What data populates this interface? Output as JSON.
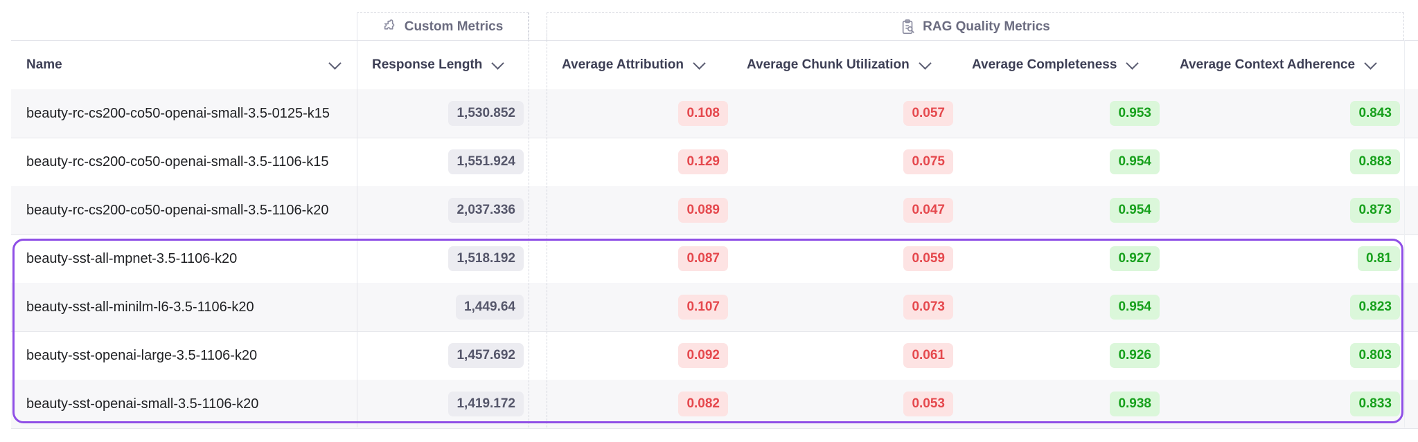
{
  "groups": {
    "custom": "Custom Metrics",
    "rag": "RAG Quality Metrics"
  },
  "icons": {
    "custom": "puzzle-icon",
    "rag": "clipboard-search-icon",
    "sort": "chevron-down-icon"
  },
  "columns": {
    "name": "Name",
    "response_length": "Response Length",
    "attribution": "Average Attribution",
    "chunk_utilization": "Average Chunk Utilization",
    "completeness": "Average Completeness",
    "context_adherence": "Average Context Adherence"
  },
  "colors": {
    "bad_text": "#e5484d",
    "bad_bg": "#fde3e3",
    "good_text": "#17a01c",
    "good_bg": "#dbf7da",
    "highlight": "#8f4fe6"
  },
  "rows": [
    {
      "name": "beauty-rc-cs200-co50-openai-small-3.5-0125-k15",
      "response_length": "1,530.852",
      "attribution": "0.108",
      "chunk_utilization": "0.057",
      "completeness": "0.953",
      "context_adherence": "0.843"
    },
    {
      "name": "beauty-rc-cs200-co50-openai-small-3.5-1106-k15",
      "response_length": "1,551.924",
      "attribution": "0.129",
      "chunk_utilization": "0.075",
      "completeness": "0.954",
      "context_adherence": "0.883"
    },
    {
      "name": "beauty-rc-cs200-co50-openai-small-3.5-1106-k20",
      "response_length": "2,037.336",
      "attribution": "0.089",
      "chunk_utilization": "0.047",
      "completeness": "0.954",
      "context_adherence": "0.873"
    },
    {
      "name": "beauty-sst-all-mpnet-3.5-1106-k20",
      "response_length": "1,518.192",
      "attribution": "0.087",
      "chunk_utilization": "0.059",
      "completeness": "0.927",
      "context_adherence": "0.81"
    },
    {
      "name": "beauty-sst-all-minilm-l6-3.5-1106-k20",
      "response_length": "1,449.64",
      "attribution": "0.107",
      "chunk_utilization": "0.073",
      "completeness": "0.954",
      "context_adherence": "0.823"
    },
    {
      "name": "beauty-sst-openai-large-3.5-1106-k20",
      "response_length": "1,457.692",
      "attribution": "0.092",
      "chunk_utilization": "0.061",
      "completeness": "0.926",
      "context_adherence": "0.803"
    },
    {
      "name": "beauty-sst-openai-small-3.5-1106-k20",
      "response_length": "1,419.172",
      "attribution": "0.082",
      "chunk_utilization": "0.053",
      "completeness": "0.938",
      "context_adherence": "0.833"
    }
  ]
}
